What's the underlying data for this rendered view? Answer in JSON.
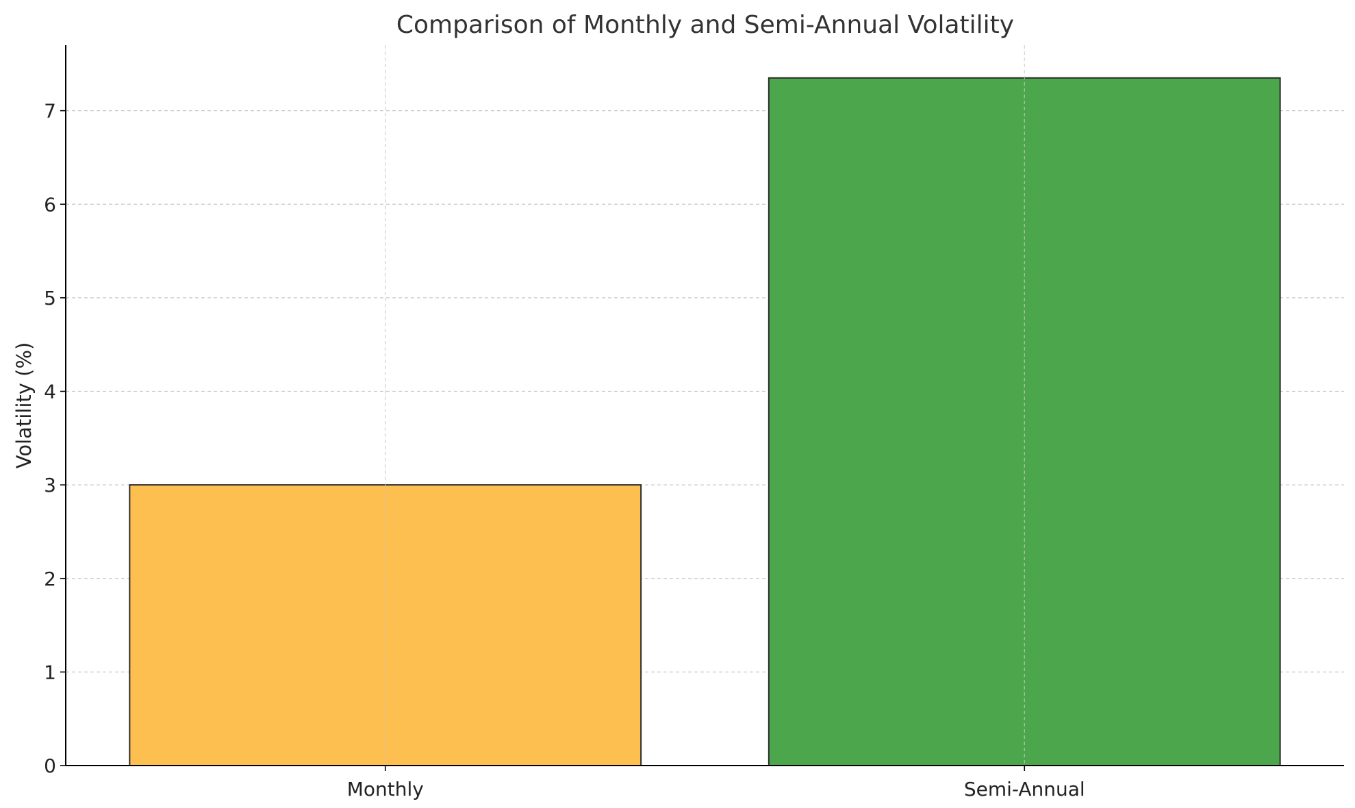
{
  "chart_data": {
    "type": "bar",
    "title": "Comparison of Monthly and Semi-Annual Volatility",
    "xlabel": "",
    "ylabel": "Volatility (%)",
    "categories": [
      "Monthly",
      "Semi-Annual"
    ],
    "values": [
      3.0,
      7.35
    ],
    "colors": [
      "#fdbf50",
      "#4ca64c"
    ],
    "edge_color": "#2b2b2b",
    "ylim": [
      0,
      7.7
    ],
    "yticks": [
      0,
      1,
      2,
      3,
      4,
      5,
      6,
      7
    ],
    "grid": true,
    "legend": "none"
  }
}
